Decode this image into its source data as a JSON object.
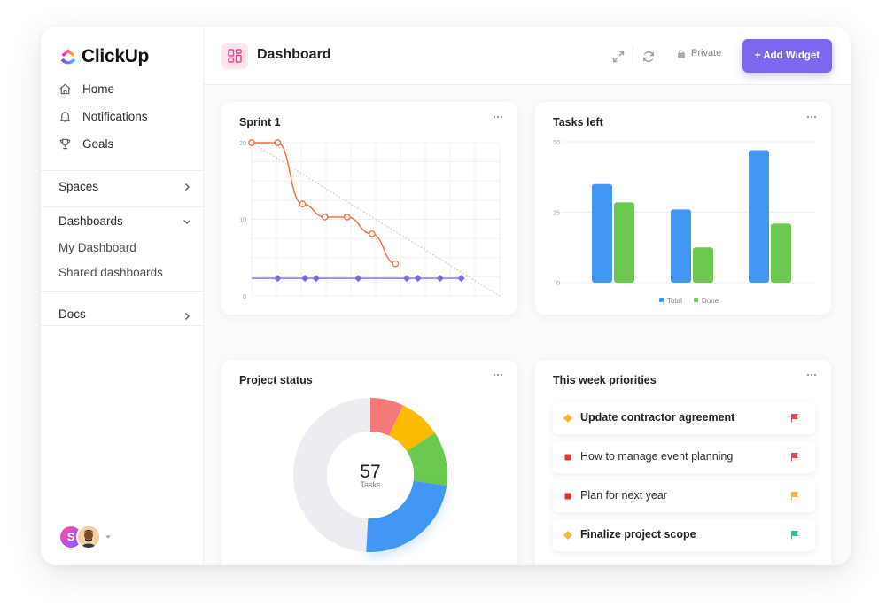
{
  "app": {
    "name": "ClickUp"
  },
  "sidebar": {
    "nav": [
      {
        "label": "Home",
        "icon": "home-icon"
      },
      {
        "label": "Notifications",
        "icon": "bell-icon"
      },
      {
        "label": "Goals",
        "icon": "trophy-icon"
      }
    ],
    "spaces_label": "Spaces",
    "dashboards_label": "Dashboards",
    "dashboards_items": [
      "My Dashboard",
      "Shared dashboards"
    ],
    "docs_label": "Docs",
    "user_initial": "S"
  },
  "header": {
    "title": "Dashboard",
    "privacy": "Private",
    "add_widget": "+ Add Widget"
  },
  "widgets": {
    "sprint": {
      "title": "Sprint 1"
    },
    "tasks_left": {
      "title": "Tasks left"
    },
    "project_status": {
      "title": "Project status",
      "center_value": "57",
      "center_label": "Tasks"
    },
    "priorities": {
      "title": "This week priorities",
      "items": [
        {
          "label": "Update contractor agreement",
          "marker": "diamond",
          "marker_color": "#f7b731",
          "flag_color": "#f0474f",
          "bold": true
        },
        {
          "label": "How to manage event planning",
          "marker": "square",
          "marker_color": "#e03131",
          "flag_color": "#f0474f",
          "bold": false
        },
        {
          "label": "Plan for next year",
          "marker": "square",
          "marker_color": "#e03131",
          "flag_color": "#f7b731",
          "bold": false
        },
        {
          "label": "Finalize project scope",
          "marker": "diamond",
          "marker_color": "#f7b731",
          "flag_color": "#2ec4a0",
          "bold": true
        }
      ]
    }
  },
  "chart_data": [
    {
      "type": "line",
      "title": "Sprint 1",
      "ylim": [
        0,
        20
      ],
      "yticks": [
        0,
        10,
        20
      ],
      "x": [
        0,
        1,
        2,
        3,
        4,
        5,
        6,
        7,
        8,
        9
      ],
      "series": [
        {
          "values": [
            20,
            20,
            12,
            10.3,
            10.3,
            8.1,
            4.2,
            null,
            null,
            null
          ],
          "color": "#f26b3a"
        },
        {
          "values": [
            2.3,
            null,
            2.3,
            2.3,
            null,
            2.3,
            null,
            2.3,
            2.3,
            2.3
          ],
          "color": "#7b68ee"
        }
      ],
      "ideal_line": {
        "from": [
          0,
          20
        ],
        "to": [
          10,
          0
        ],
        "color": "#e8b8a4"
      },
      "grid": true
    },
    {
      "type": "bar",
      "title": "Tasks left",
      "categories": [
        "",
        "",
        ""
      ],
      "ylim": [
        0,
        50
      ],
      "yticks": [
        0,
        25,
        50
      ],
      "series": [
        {
          "name": "Total",
          "values": [
            35,
            26,
            47
          ],
          "color": "#4296f4"
        },
        {
          "name": "Done",
          "values": [
            28.5,
            12.5,
            21
          ],
          "color": "#6bc950"
        }
      ],
      "legend": "bottom"
    },
    {
      "type": "pie",
      "title": "Project status",
      "donut": true,
      "total": 57,
      "slices": [
        {
          "value": 4,
          "color": "#f47a7a"
        },
        {
          "value": 5,
          "color": "#fcbb03"
        },
        {
          "value": 6.5,
          "color": "#6bc950"
        },
        {
          "value": 13.5,
          "color": "#4296f4"
        },
        {
          "value": 28,
          "color": "#ebedf2"
        }
      ]
    }
  ]
}
